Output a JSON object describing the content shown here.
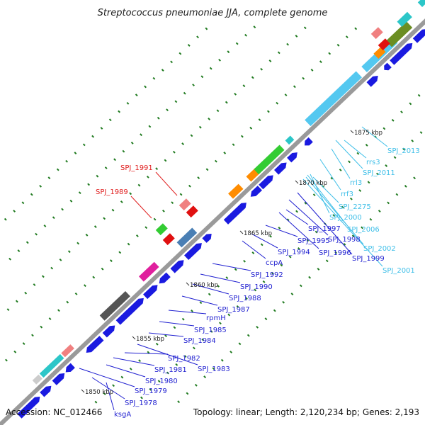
{
  "title": "Streptococcus pneumoniae JJA, complete genome",
  "accession": "Accession: NC_012466",
  "summary": "Topology: linear; Length: 2,120,234 bp; Genes: 2,193",
  "colors": {
    "backbone": "#9a9a9a",
    "tick": "#1f7a1f",
    "cds_label": "#1f1fd0",
    "rna_label": "#3fbfe8",
    "pseudo_label": "#e02020"
  },
  "scale_marks": [
    {
      "kbp": 1850,
      "label": "1850 kbp"
    },
    {
      "kbp": 1855,
      "label": "1855 kbp"
    },
    {
      "kbp": 1860,
      "label": "1860 kbp"
    },
    {
      "kbp": 1865,
      "label": "1865 kbp"
    },
    {
      "kbp": 1870,
      "label": "1870 kbp"
    },
    {
      "kbp": 1875,
      "label": "1875 kbp"
    }
  ],
  "gene_labels": [
    {
      "text": "ksgA",
      "kind": "cds"
    },
    {
      "text": "SPJ_1978",
      "kind": "cds"
    },
    {
      "text": "SPJ_1979",
      "kind": "cds"
    },
    {
      "text": "SPJ_1980",
      "kind": "cds"
    },
    {
      "text": "SPJ_1981",
      "kind": "cds"
    },
    {
      "text": "SPJ_1982",
      "kind": "cds"
    },
    {
      "text": "SPJ_1983",
      "kind": "cds"
    },
    {
      "text": "SPJ_1984",
      "kind": "cds"
    },
    {
      "text": "SPJ_1985",
      "kind": "cds"
    },
    {
      "text": "rpmH",
      "kind": "cds"
    },
    {
      "text": "SPJ_1987",
      "kind": "cds"
    },
    {
      "text": "SPJ_1988",
      "kind": "cds"
    },
    {
      "text": "SPJ_1990",
      "kind": "cds"
    },
    {
      "text": "SPJ_1992",
      "kind": "cds"
    },
    {
      "text": "ccpA",
      "kind": "cds"
    },
    {
      "text": "SPJ_1994",
      "kind": "cds"
    },
    {
      "text": "SPJ_1995",
      "kind": "cds"
    },
    {
      "text": "SPJ_1996",
      "kind": "cds"
    },
    {
      "text": "SPJ_1997",
      "kind": "cds"
    },
    {
      "text": "SPJ_1998",
      "kind": "cds"
    },
    {
      "text": "SPJ_1999",
      "kind": "cds"
    },
    {
      "text": "SPJ_2001",
      "kind": "rna"
    },
    {
      "text": "SPJ_2002",
      "kind": "rna"
    },
    {
      "text": "SPJ_2006",
      "kind": "rna"
    },
    {
      "text": "SPJ_2000",
      "kind": "rna"
    },
    {
      "text": "SPJ_2275",
      "kind": "rna"
    },
    {
      "text": "rrf3",
      "kind": "rna"
    },
    {
      "text": "rrl3",
      "kind": "rna"
    },
    {
      "text": "SPJ_2011",
      "kind": "rna"
    },
    {
      "text": "rrs3",
      "kind": "rna"
    },
    {
      "text": "SPJ_2013",
      "kind": "rna"
    },
    {
      "text": "SPJ_1989",
      "kind": "pseudo"
    },
    {
      "text": "SPJ_1991",
      "kind": "pseudo"
    }
  ]
}
